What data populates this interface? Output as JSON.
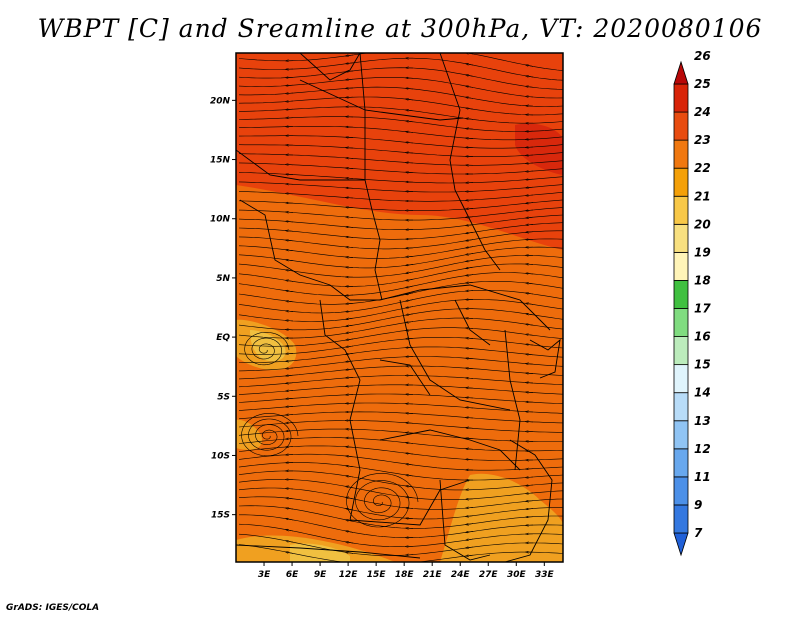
{
  "title": "WBPT [C] and Sreamline at 300hPa, VT: 2020080106",
  "credit": "GrADS: IGES/COLA",
  "map": {
    "lat_range": [
      -19,
      24
    ],
    "lon_range": [
      0,
      35
    ],
    "field_colors": {
      "c20": "#f0c040",
      "c21": "#f0a020",
      "c22": "#ee6c0c",
      "c23": "#e8420c",
      "c24": "#d8280c"
    },
    "x_ticks": [
      "3E",
      "6E",
      "9E",
      "12E",
      "15E",
      "18E",
      "21E",
      "24E",
      "27E",
      "30E",
      "33E"
    ],
    "y_ticks": [
      "20N",
      "15N",
      "10N",
      "5N",
      "EQ",
      "5S",
      "10S",
      "15S"
    ]
  },
  "colorbar": {
    "labels": [
      "7",
      "9",
      "11",
      "12",
      "13",
      "14",
      "15",
      "16",
      "17",
      "18",
      "19",
      "20",
      "21",
      "22",
      "23",
      "24",
      "25",
      "26"
    ],
    "colors": [
      "#2060d8",
      "#3478e0",
      "#4c90e8",
      "#68a8ee",
      "#90c4f4",
      "#b8dcf8",
      "#e0f4fc",
      "#bcecbc",
      "#80dc80",
      "#40c040",
      "#fff4b8",
      "#f8e080",
      "#f8c848",
      "#f4a008",
      "#f07810",
      "#e84c10",
      "#d82408",
      "#b80808"
    ]
  }
}
